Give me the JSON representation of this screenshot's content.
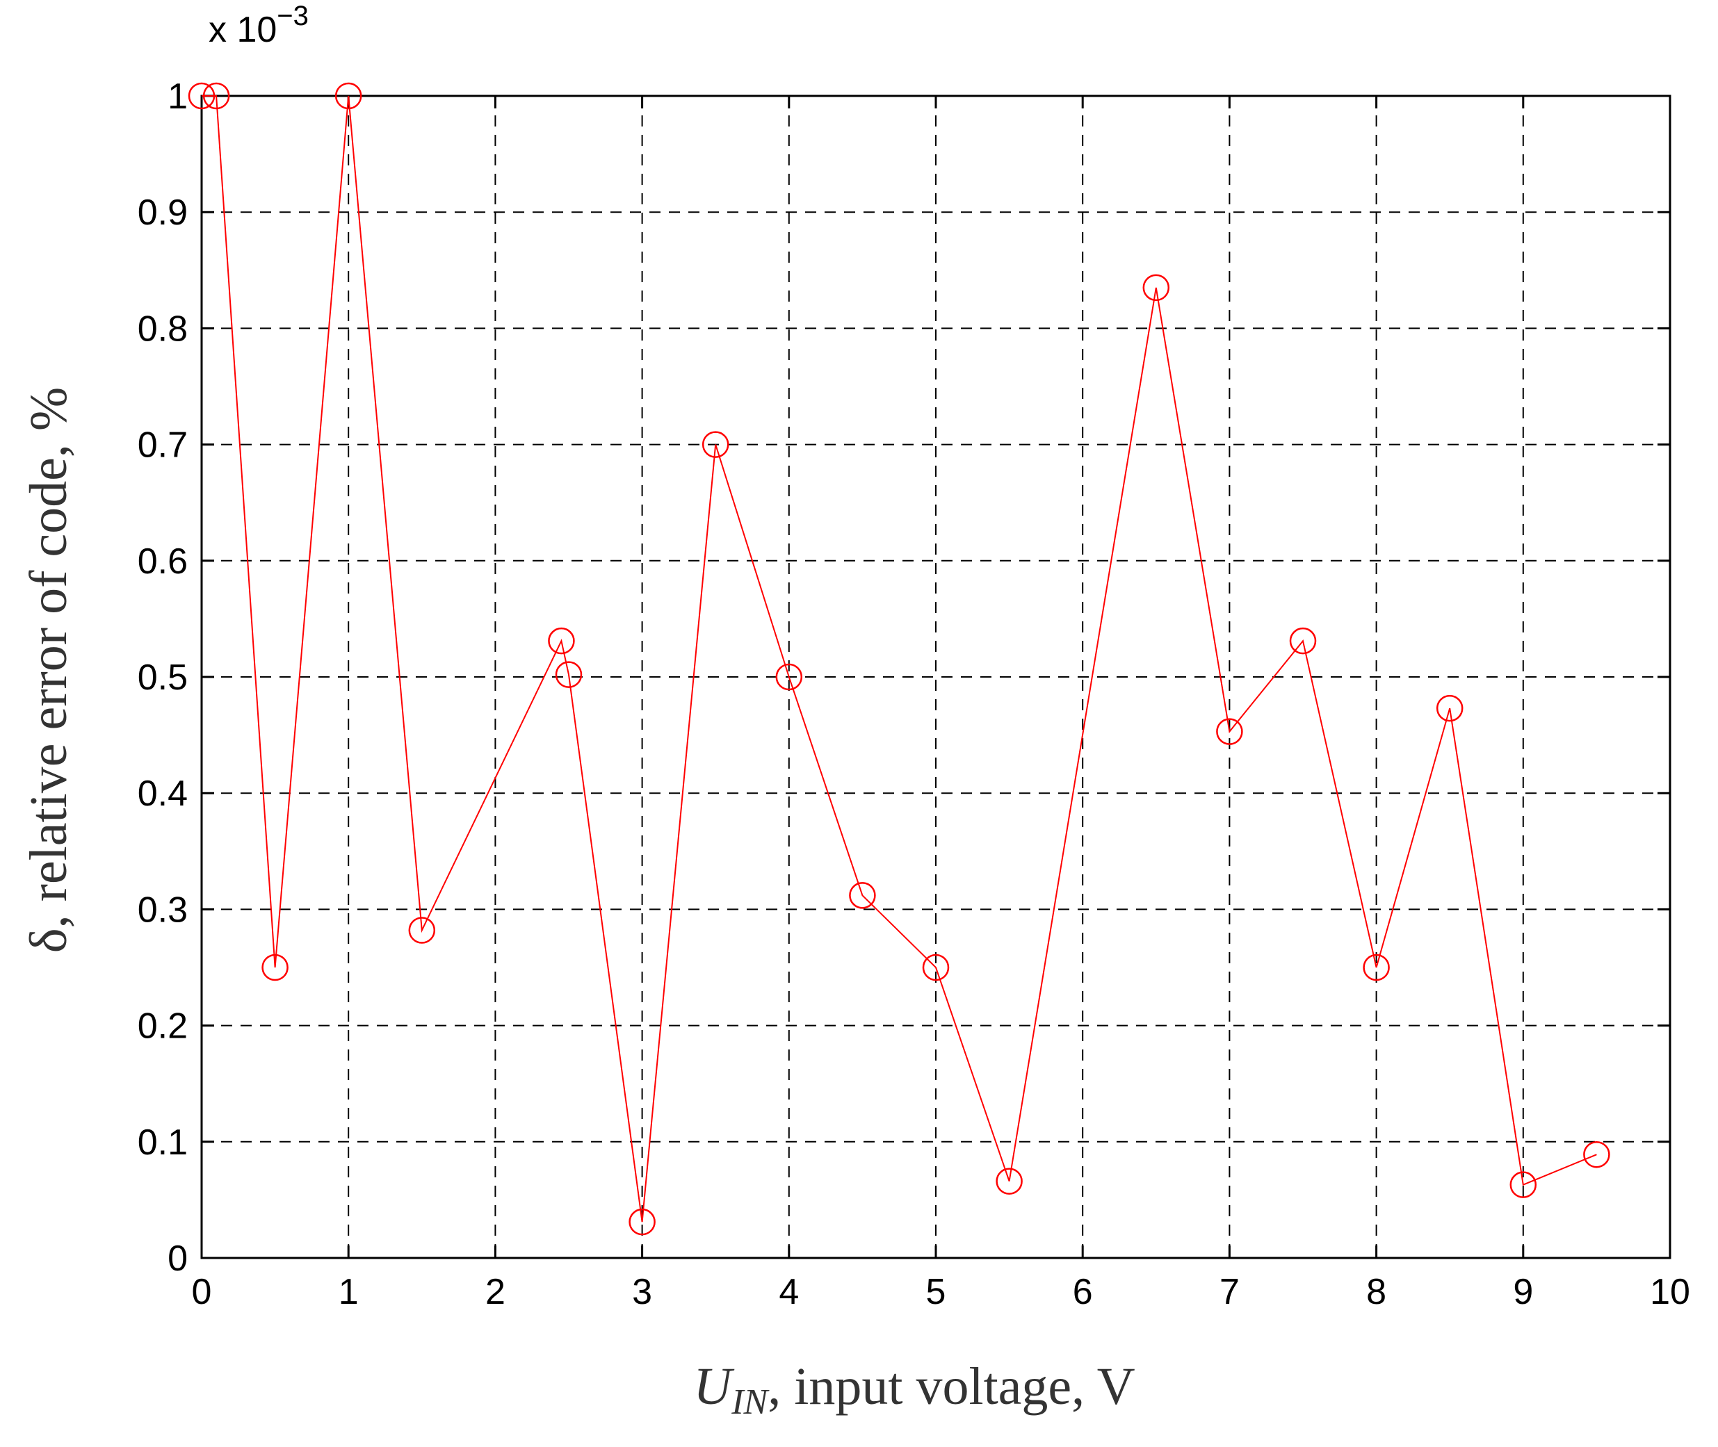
{
  "chart_data": {
    "type": "line",
    "title": "",
    "xlabel": {
      "main": "U",
      "sub": "IN",
      "rest": ", input voltage, V"
    },
    "ylabel": "δ, relative error of code, %",
    "y_multiplier": {
      "base": "x 10",
      "exponent": "−3"
    },
    "xlim": [
      0,
      10
    ],
    "ylim": [
      0,
      1
    ],
    "x_ticks": [
      0,
      1,
      2,
      3,
      4,
      5,
      6,
      7,
      8,
      9,
      10
    ],
    "x_tick_labels": [
      "0",
      "1",
      "2",
      "3",
      "4",
      "5",
      "6",
      "7",
      "8",
      "9",
      "10"
    ],
    "y_ticks": [
      0,
      0.1,
      0.2,
      0.3,
      0.4,
      0.5,
      0.6,
      0.7,
      0.8,
      0.9,
      1
    ],
    "y_tick_labels": [
      "0",
      "0.1",
      "0.2",
      "0.3",
      "0.4",
      "0.5",
      "0.6",
      "0.7",
      "0.8",
      "0.9",
      "1"
    ],
    "grid": true,
    "grid_style": "dashed",
    "series": [
      {
        "color": "#ff0000",
        "marker": "circle",
        "x": [
          0,
          0.1,
          0.5,
          1,
          1.5,
          2.45,
          2.5,
          3,
          3.5,
          4,
          4.5,
          5,
          5.5,
          6.5,
          7,
          7.5,
          8,
          8.5,
          9,
          9.5
        ],
        "y": [
          1.0,
          1.0,
          0.25,
          1.0,
          0.282,
          0.531,
          0.502,
          0.031,
          0.7,
          0.5,
          0.312,
          0.25,
          0.066,
          0.835,
          0.453,
          0.531,
          0.25,
          0.473,
          0.063,
          0.089
        ]
      }
    ]
  }
}
